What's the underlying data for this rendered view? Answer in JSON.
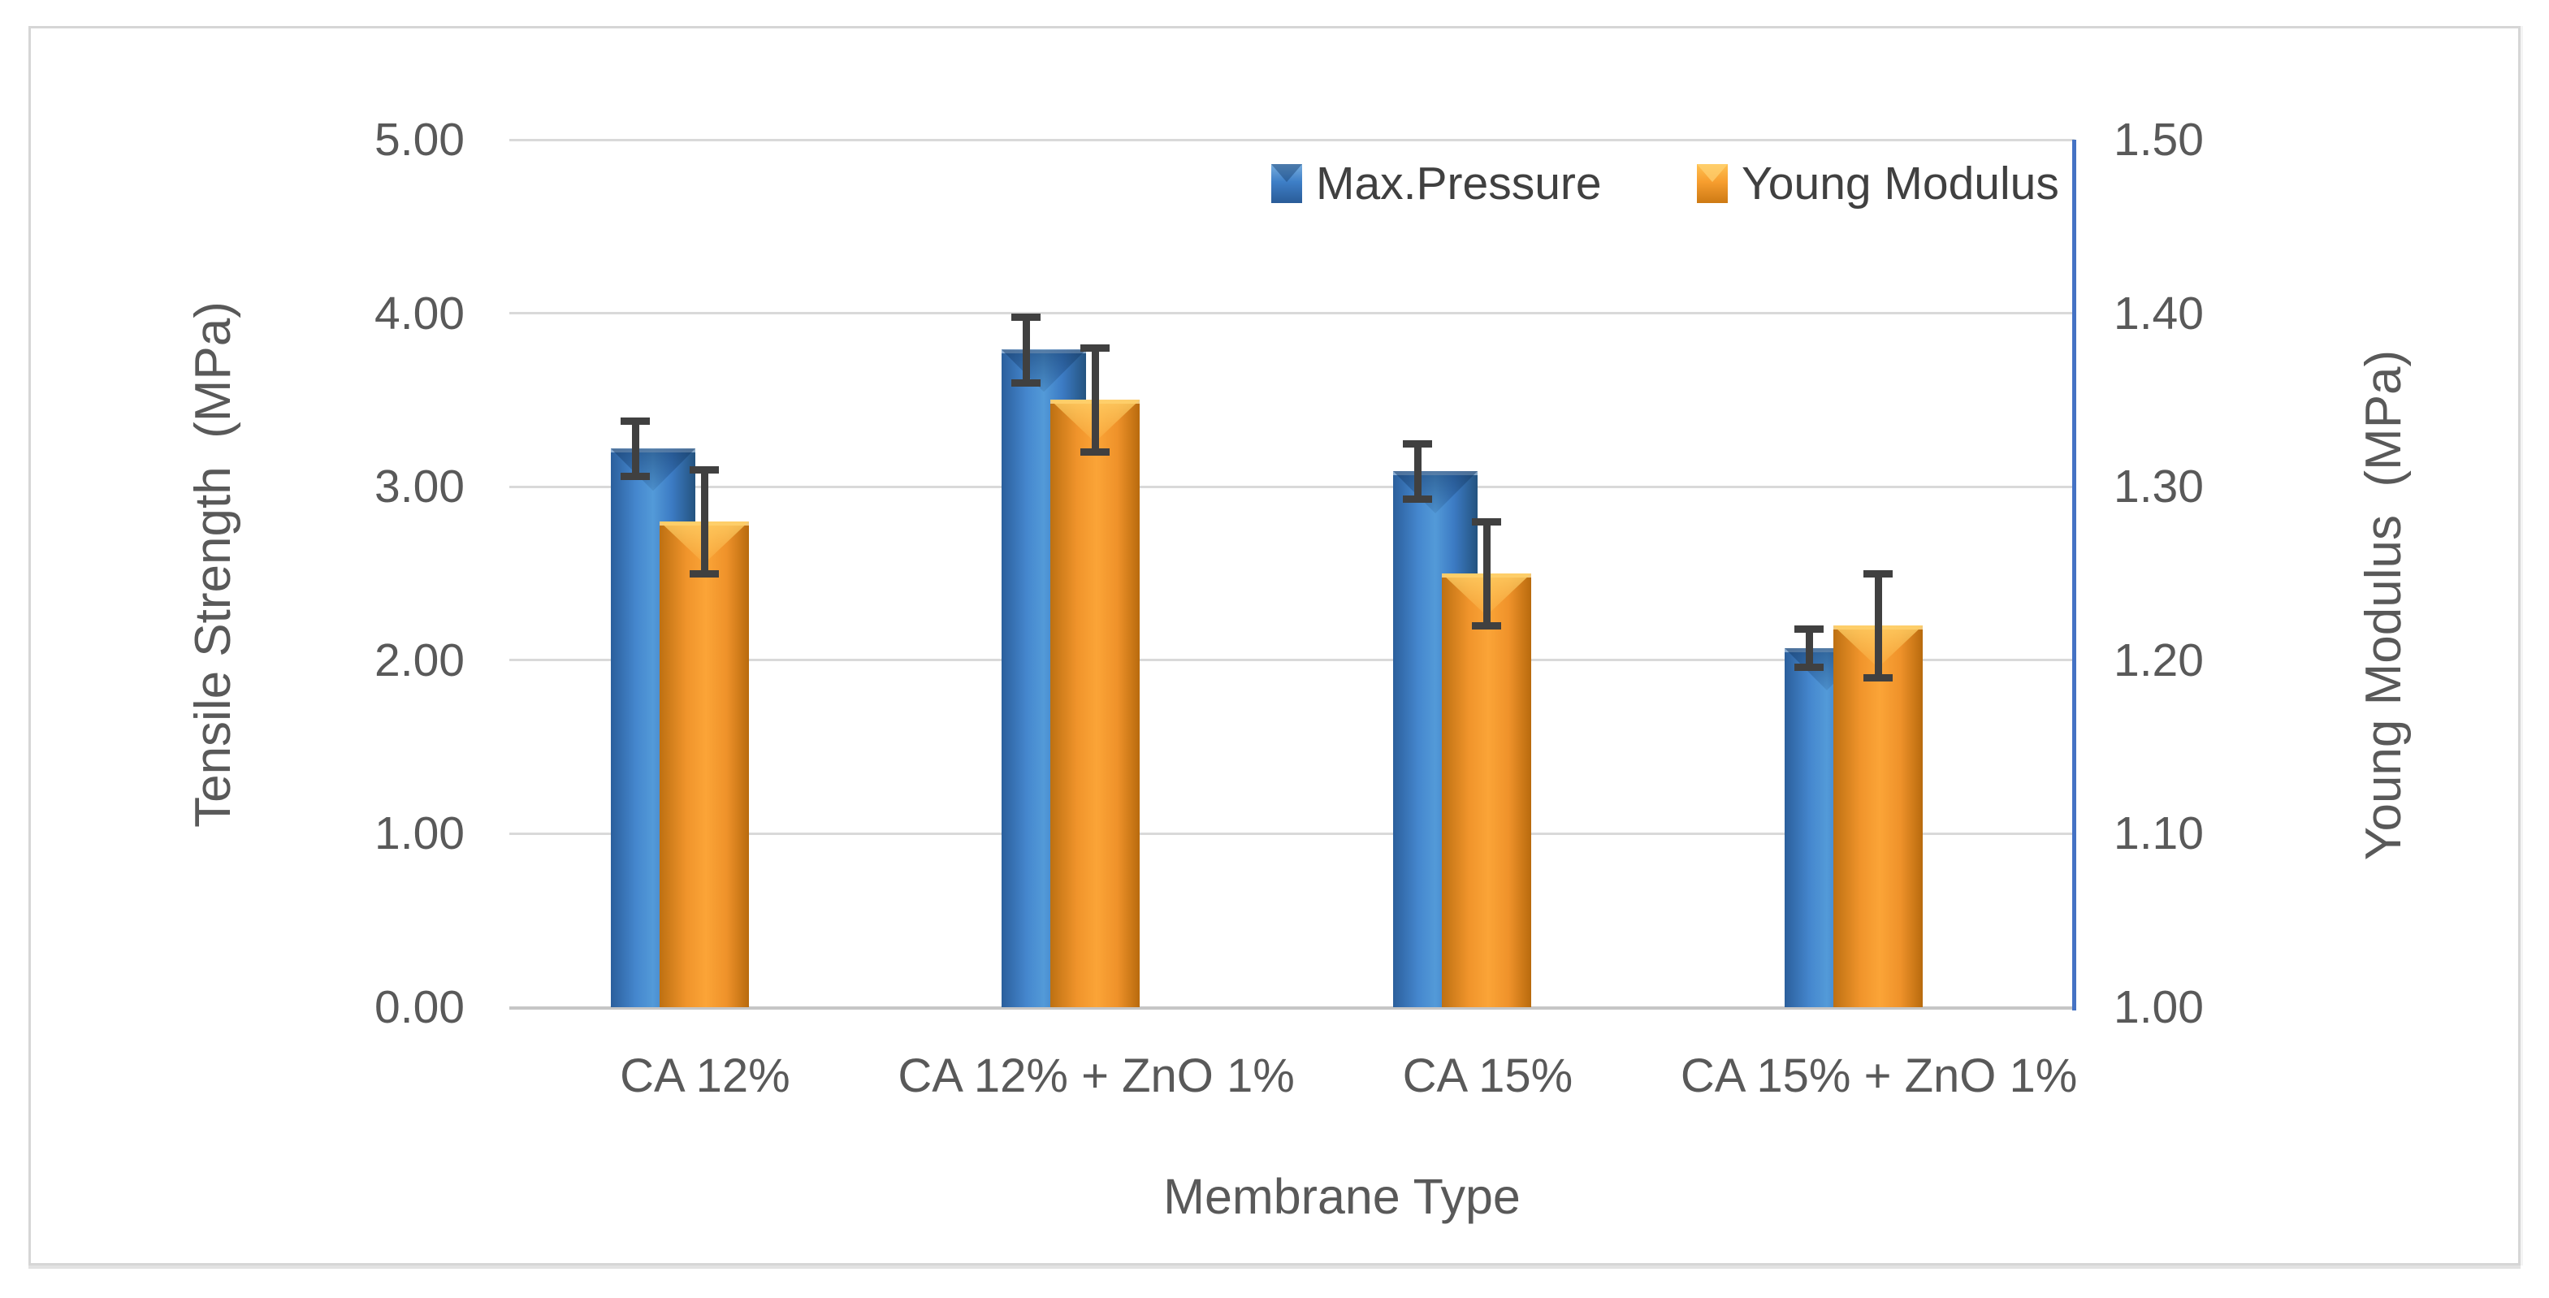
{
  "legend": {
    "items": [
      {
        "label": "Max.Pressure",
        "color": "#3E7FC7"
      },
      {
        "label": "Young Modulus",
        "color": "#F79E2F"
      }
    ]
  },
  "axes": {
    "left": {
      "title": "Tensile Strength  (MPa)",
      "tick_labels": [
        "5.00",
        "4.00",
        "3.00",
        "2.00",
        "1.00",
        "0.00"
      ]
    },
    "right": {
      "title": "Young Modulus  (MPa)",
      "tick_labels": [
        "1.50",
        "1.40",
        "1.30",
        "1.20",
        "1.10",
        "1.00"
      ]
    },
    "x": {
      "title": "Membrane Type",
      "categories": [
        "CA 12%",
        "CA 12% + ZnO 1%",
        "CA 15%",
        "CA 15% + ZnO 1%"
      ]
    }
  },
  "chart_data": {
    "type": "bar",
    "title": "",
    "categories": [
      "CA 12%",
      "CA 12% + ZnO 1%",
      "CA 15%",
      "CA 15% + ZnO 1%"
    ],
    "series": [
      {
        "name": "Max.Pressure",
        "axis": "left",
        "color": "#3E7FC7",
        "values": [
          3.22,
          3.79,
          3.09,
          2.07
        ],
        "error_bars": [
          0.16,
          0.19,
          0.16,
          0.11
        ]
      },
      {
        "name": "Young Modulus",
        "axis": "right",
        "color": "#F79E2F",
        "values": [
          1.28,
          1.35,
          1.25,
          1.22
        ],
        "error_bars": [
          0.03,
          0.03,
          0.03,
          0.03
        ]
      }
    ],
    "xlabel": "Membrane Type",
    "ylabel_left": "Tensile Strength (MPa)",
    "ylabel_right": "Young Modulus (MPa)",
    "ylim_left": [
      0,
      5
    ],
    "ylim_right": [
      1.0,
      1.5
    ],
    "grid": true,
    "legend_position": "top-right-inside"
  },
  "colors": {
    "bar_blue": "#3E7FC7",
    "bar_orange": "#F79E2F",
    "error_bar": "#404040",
    "gridline": "#D9D9D9",
    "x_axis_line": "#C6C6C6",
    "right_axis_line": "#4472C4",
    "text": "#595959",
    "frame_border": "#D6D6D6"
  }
}
